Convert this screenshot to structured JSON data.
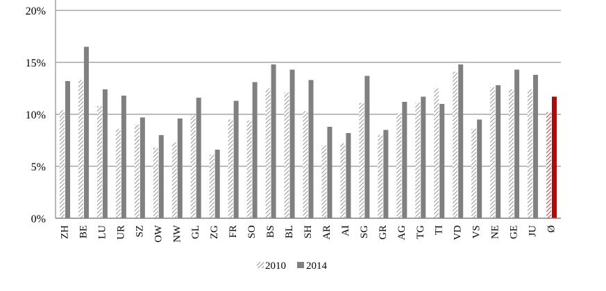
{
  "chart_data": {
    "type": "bar",
    "categories": [
      "ZH",
      "BE",
      "LU",
      "UR",
      "SZ",
      "OW",
      "NW",
      "GL",
      "ZG",
      "FR",
      "SO",
      "BS",
      "BL",
      "SH",
      "AR",
      "AI",
      "SG",
      "GR",
      "AG",
      "TG",
      "TI",
      "VD",
      "VS",
      "NE",
      "GE",
      "JU",
      "Ø"
    ],
    "series": [
      {
        "name": "2010",
        "pattern": "hatched",
        "color": "#9a9a9a",
        "highlight_color": "#c00000",
        "values": [
          10.4,
          13.3,
          10.8,
          8.6,
          9.0,
          6.8,
          7.3,
          9.9,
          6.1,
          9.5,
          9.4,
          12.5,
          12.1,
          10.3,
          7.0,
          7.2,
          11.1,
          8.0,
          10.1,
          11.1,
          12.5,
          14.1,
          8.6,
          12.6,
          12.4,
          12.4,
          10.2
        ]
      },
      {
        "name": "2014",
        "pattern": "solid",
        "color": "#808080",
        "highlight_color": "#c00000",
        "values": [
          13.2,
          16.5,
          12.4,
          11.8,
          9.7,
          8.0,
          9.6,
          11.6,
          6.6,
          11.3,
          13.1,
          14.8,
          14.3,
          13.3,
          8.8,
          8.2,
          13.7,
          8.5,
          11.2,
          11.7,
          11.0,
          14.8,
          9.5,
          12.8,
          14.3,
          13.8,
          11.7
        ]
      }
    ],
    "highlight_category": "Ø",
    "yticks": [
      "0%",
      "5%",
      "10%",
      "15%",
      "20%"
    ],
    "ylim": [
      0,
      20
    ],
    "grid": true,
    "legend_position": "bottom-center",
    "title": "",
    "xlabel": "",
    "ylabel": ""
  }
}
